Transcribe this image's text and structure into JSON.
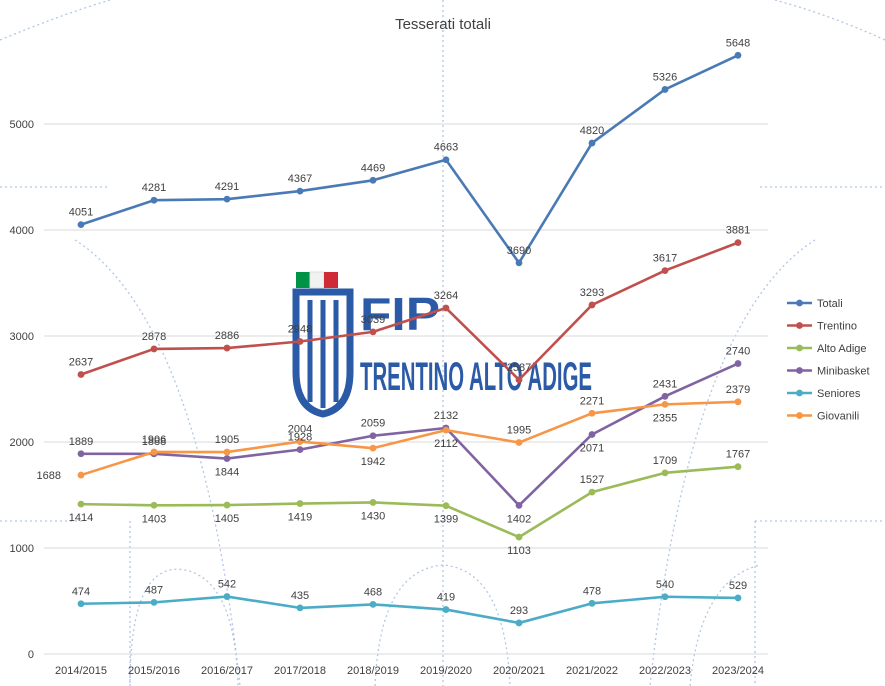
{
  "chart_data": {
    "type": "line",
    "title": "Tesserati totali",
    "xlabel": "",
    "ylabel": "",
    "ylim": [
      0,
      6000
    ],
    "yticks": [
      0,
      1000,
      2000,
      3000,
      4000,
      5000
    ],
    "grid": "horizontal",
    "legend_position": "right",
    "categories": [
      "2014/2015",
      "2015/2016",
      "2016/2017",
      "2017/2018",
      "2018/2019",
      "2019/2020",
      "2020/2021",
      "2021/2022",
      "2022/2023",
      "2023/2024"
    ],
    "series": [
      {
        "name": "Totali",
        "color": "#4a7ab5",
        "values": [
          4051,
          4281,
          4291,
          4367,
          4469,
          4663,
          3690,
          4820,
          5326,
          5648
        ],
        "labels_position": "above"
      },
      {
        "name": "Trentino",
        "color": "#c0504d",
        "values": [
          2637,
          2878,
          2886,
          2948,
          3039,
          3264,
          2587,
          3293,
          3617,
          3881
        ],
        "labels_position": "above"
      },
      {
        "name": "Alto Adige",
        "color": "#9bbb59",
        "values": [
          1414,
          1403,
          1405,
          1419,
          1430,
          1399,
          1103,
          1527,
          1709,
          1767
        ],
        "labels_position": "mixed"
      },
      {
        "name": "Minibasket",
        "color": "#8064a2",
        "values": [
          1889,
          1888,
          1844,
          1928,
          2059,
          2132,
          1402,
          2071,
          2431,
          2740
        ],
        "labels_position": "mixed"
      },
      {
        "name": "Seniores",
        "color": "#4bacc6",
        "values": [
          474,
          487,
          542,
          435,
          468,
          419,
          293,
          478,
          540,
          529
        ],
        "labels_position": "above"
      },
      {
        "name": "Giovanili",
        "color": "#f79646",
        "values": [
          1688,
          1906,
          1905,
          2004,
          1942,
          2112,
          1995,
          2271,
          2355,
          2379
        ],
        "labels_position": "mixed"
      }
    ]
  },
  "watermark": {
    "brand": "FIP",
    "region": "TRENTINO ALTO ADIGE",
    "flag_colors": [
      "#009246",
      "#ffffff",
      "#ce2b37"
    ],
    "accent_color": "#2b5aa6"
  }
}
